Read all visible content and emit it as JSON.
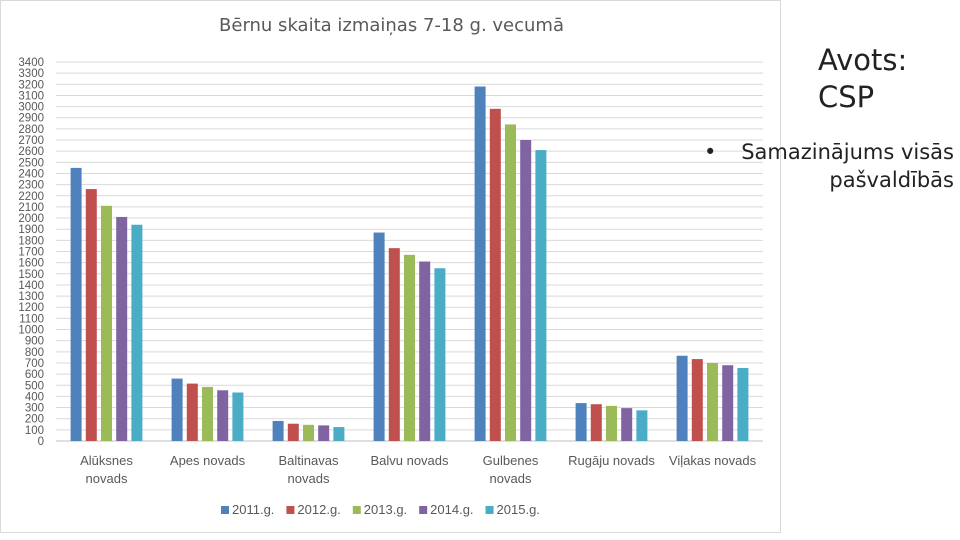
{
  "source": {
    "line1": "Avots:",
    "line2": "CSP"
  },
  "bullet": {
    "dot": "•",
    "text": "Samazinājums visās pašvaldībās"
  },
  "colors": {
    "2011.g.": "#4f81bd",
    "2012.g.": "#c0504d",
    "2013.g.": "#9bbb59",
    "2014.g.": "#8064a2",
    "2015.g.": "#4bacc6"
  },
  "chart_data": {
    "type": "bar",
    "title": "Bērnu skaita izmaiņas 7-18 g. vecumā",
    "xlabel": "",
    "ylabel": "",
    "ylim": [
      0,
      3400
    ],
    "ytick_step": 100,
    "grid": true,
    "legend_position": "bottom",
    "categories": [
      [
        "Alūksnes",
        "novads"
      ],
      [
        "Apes novads"
      ],
      [
        "Baltinavas",
        "novads"
      ],
      [
        "Balvu novads"
      ],
      [
        "Gulbenes",
        "novads"
      ],
      [
        "Rugāju novads"
      ],
      [
        "Viļakas novads"
      ]
    ],
    "series": [
      {
        "name": "2011.g.",
        "values": [
          2450,
          560,
          180,
          1870,
          3180,
          340,
          765
        ]
      },
      {
        "name": "2012.g.",
        "values": [
          2260,
          515,
          155,
          1730,
          2980,
          330,
          735
        ]
      },
      {
        "name": "2013.g.",
        "values": [
          2110,
          485,
          145,
          1670,
          2840,
          315,
          700
        ]
      },
      {
        "name": "2014.g.",
        "values": [
          2010,
          455,
          140,
          1610,
          2700,
          295,
          680
        ]
      },
      {
        "name": "2015.g.",
        "values": [
          1940,
          435,
          125,
          1550,
          2610,
          275,
          655
        ]
      }
    ]
  }
}
